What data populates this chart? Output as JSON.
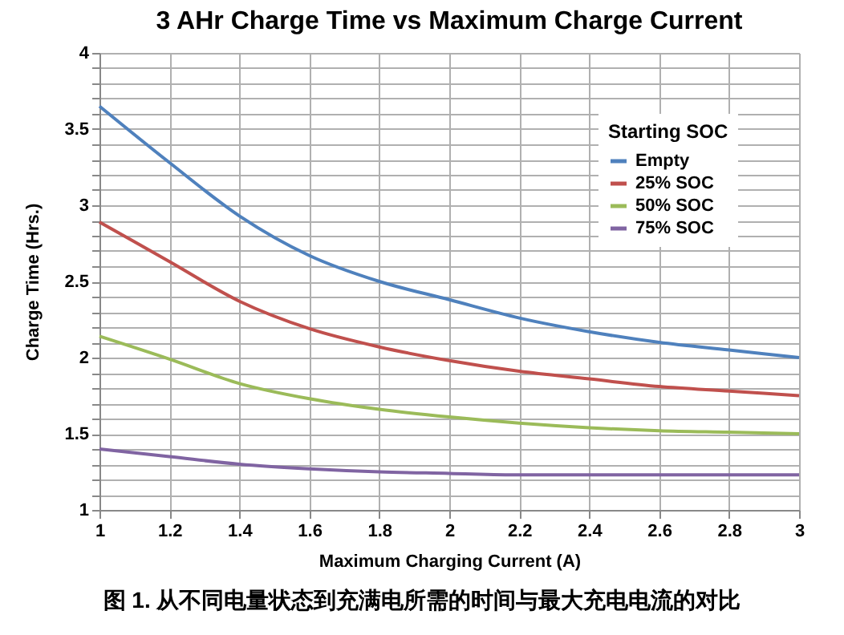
{
  "chart_data": {
    "type": "line",
    "title": "3 AHr Charge Time vs Maximum Charge Current",
    "xlabel": "Maximum Charging Current (A)",
    "ylabel": "Charge Time (Hrs.)",
    "legend_title": "Starting SOC",
    "annotations": [
      "图 1. 从不同电量状态到充满电所需的时间与最大充电电流的对比"
    ],
    "x": [
      1,
      1.2,
      1.4,
      1.6,
      1.8,
      2,
      2.2,
      2.4,
      2.6,
      2.8,
      3
    ],
    "series": [
      {
        "name": "Empty",
        "color": "#4f81bd",
        "values": [
          3.65,
          3.28,
          2.93,
          2.67,
          2.5,
          2.38,
          2.26,
          2.17,
          2.1,
          2.05,
          2
        ]
      },
      {
        "name": "25% SOC",
        "color": "#c0504d",
        "values": [
          2.89,
          2.63,
          2.37,
          2.19,
          2.07,
          1.98,
          1.91,
          1.86,
          1.81,
          1.78,
          1.75
        ]
      },
      {
        "name": "50% SOC",
        "color": "#9bbb59",
        "values": [
          2.14,
          1.99,
          1.83,
          1.73,
          1.66,
          1.61,
          1.57,
          1.54,
          1.52,
          1.51,
          1.5
        ]
      },
      {
        "name": "75% SOC",
        "color": "#8064a2",
        "values": [
          1.4,
          1.35,
          1.3,
          1.27,
          1.25,
          1.24,
          1.23,
          1.23,
          1.23,
          1.23,
          1.23
        ]
      }
    ],
    "xlim": [
      1,
      3
    ],
    "xticks": [
      1,
      1.2,
      1.4,
      1.6,
      1.8,
      2,
      2.2,
      2.4,
      2.6,
      2.8,
      3
    ],
    "ylim": [
      1,
      4
    ],
    "yticks": [
      1,
      {
        "value": 1.1,
        "label": null
      },
      {
        "value": 1.2,
        "label": null
      },
      {
        "value": 1.3,
        "label": null
      },
      {
        "value": 1.4,
        "label": null
      },
      1.5,
      {
        "value": 1.6,
        "label": null
      },
      {
        "value": 1.7,
        "label": null
      },
      {
        "value": 1.8,
        "label": null
      },
      {
        "value": 1.9,
        "label": null
      },
      2,
      {
        "value": 2.1,
        "label": null
      },
      {
        "value": 2.2,
        "label": null
      },
      {
        "value": 2.3,
        "label": null
      },
      {
        "value": 2.4,
        "label": null
      },
      2.5,
      {
        "value": 2.6,
        "label": null
      },
      {
        "value": 2.7,
        "label": null
      },
      {
        "value": 2.8,
        "label": null
      },
      {
        "value": 2.9,
        "label": null
      },
      3,
      {
        "value": 3.1,
        "label": null
      },
      {
        "value": 3.2,
        "label": null
      },
      {
        "value": 3.3,
        "label": null
      },
      {
        "value": 3.4,
        "label": null
      },
      3.5,
      {
        "value": 3.6,
        "label": null
      },
      {
        "value": 3.7,
        "label": null
      },
      {
        "value": 3.8,
        "label": null
      },
      {
        "value": 3.9,
        "label": null
      },
      4
    ],
    "grid": true,
    "legend": "top right",
    "marker": "none",
    "line_style": "solid"
  }
}
